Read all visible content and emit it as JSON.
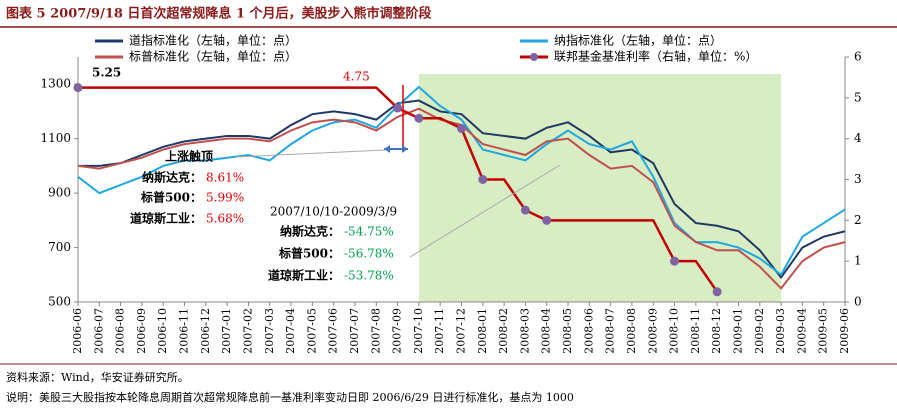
{
  "chart_data": {
    "type": "line",
    "title": "图表 5 2007/9/18 日首次超常规降息 1 个月后，美股步入熊市调整阶段",
    "categories": [
      "2006-06",
      "2006-07",
      "2006-08",
      "2006-09",
      "2006-10",
      "2006-11",
      "2006-12",
      "2007-01",
      "2007-02",
      "2007-03",
      "2007-04",
      "2007-05",
      "2007-06",
      "2007-07",
      "2007-08",
      "2007-09",
      "2007-10",
      "2007-11",
      "2007-12",
      "2008-01",
      "2008-02",
      "2008-03",
      "2008-04",
      "2008-05",
      "2008-06",
      "2008-07",
      "2008-08",
      "2008-09",
      "2008-10",
      "2008-11",
      "2008-12",
      "2009-01",
      "2009-02",
      "2009-03",
      "2009-04",
      "2009-05",
      "2009-06"
    ],
    "series": [
      {
        "name": "道指标准化（左轴，单位：点）",
        "color": "#1f3864",
        "values": [
          1000,
          1000,
          1010,
          1040,
          1070,
          1090,
          1100,
          1110,
          1110,
          1100,
          1150,
          1190,
          1200,
          1190,
          1170,
          1230,
          1240,
          1200,
          1190,
          1120,
          1110,
          1100,
          1140,
          1160,
          1110,
          1050,
          1060,
          1010,
          860,
          790,
          780,
          760,
          690,
          590,
          700,
          740,
          760
        ]
      },
      {
        "name": "纳指标准化（左轴，单位：点）",
        "color": "#1ea7e1",
        "values": [
          960,
          900,
          930,
          960,
          1000,
          1020,
          1020,
          1030,
          1040,
          1020,
          1080,
          1130,
          1160,
          1170,
          1140,
          1220,
          1290,
          1220,
          1170,
          1060,
          1040,
          1020,
          1080,
          1130,
          1080,
          1060,
          1090,
          960,
          790,
          720,
          720,
          700,
          660,
          600,
          740,
          790,
          840
        ]
      },
      {
        "name": "标普标准化（左轴，单位：点）",
        "color": "#c0504d",
        "values": [
          1000,
          990,
          1010,
          1030,
          1060,
          1080,
          1090,
          1100,
          1100,
          1090,
          1130,
          1160,
          1170,
          1160,
          1130,
          1180,
          1210,
          1170,
          1150,
          1080,
          1060,
          1040,
          1090,
          1100,
          1040,
          990,
          1000,
          940,
          780,
          720,
          690,
          690,
          630,
          550,
          650,
          700,
          720
        ]
      },
      {
        "name": "联邦基金基准利率（右轴，单位：%）",
        "color": "#c00000",
        "marker_color": "#8064a2",
        "axis": "y2",
        "values": [
          5.25,
          5.25,
          5.25,
          5.25,
          5.25,
          5.25,
          5.25,
          5.25,
          5.25,
          5.25,
          5.25,
          5.25,
          5.25,
          5.25,
          5.25,
          4.75,
          4.5,
          4.5,
          4.25,
          3.0,
          3.0,
          2.25,
          2.0,
          2.0,
          2.0,
          2.0,
          2.0,
          2.0,
          1.0,
          1.0,
          0.25,
          null,
          null,
          null,
          null,
          null,
          null
        ]
      }
    ],
    "ylim": [
      500,
      1400
    ],
    "yticks": [
      500,
      700,
      900,
      1100,
      1300
    ],
    "y2lim": [
      0,
      6
    ],
    "y2ticks": [
      0,
      1,
      2,
      3,
      4,
      5,
      6
    ],
    "highlight": {
      "from": "2007-10",
      "to": "2009-03",
      "color": "#d8edc4"
    },
    "annotations": {
      "start_rate": "5.25",
      "cut_rate": "4.75",
      "peak": "上涨触顶",
      "rise": [
        {
          "label": "纳斯达克：",
          "value": "8.61%"
        },
        {
          "label": "标普500：",
          "value": "5.99%"
        },
        {
          "label": "道琼斯工业：",
          "value": "5.68%"
        }
      ],
      "period": "2007/10/10-2009/3/9",
      "fall": [
        {
          "label": "纳斯达克：",
          "value": "-54.75%"
        },
        {
          "label": "标普500：",
          "value": "-56.78%"
        },
        {
          "label": "道琼斯工业：",
          "value": "-53.78%"
        }
      ]
    },
    "source": "资料来源：Wind，华安证券研究所。",
    "note": "说明：美股三大股指按本轮降息周期首次超常规降息前一基准利率变动日即 2006/6/29 日进行标准化，基点为 1000"
  }
}
